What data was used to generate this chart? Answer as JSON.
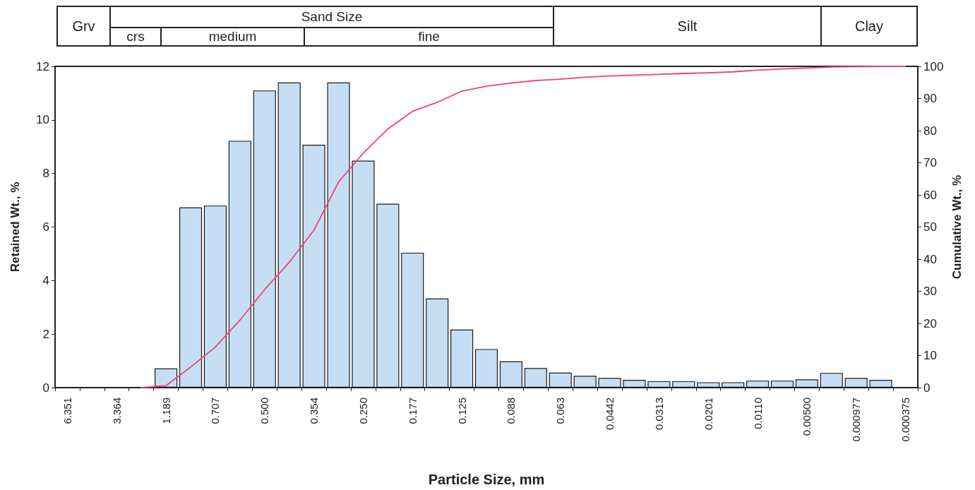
{
  "chart_data": {
    "type": "bar",
    "categories": [
      "6.351",
      null,
      "3.364",
      null,
      "1.189",
      null,
      "0.707",
      null,
      "0.500",
      null,
      "0.354",
      null,
      "0.250",
      null,
      "0.177",
      null,
      "0.125",
      null,
      "0.088",
      null,
      "0.063",
      null,
      "0.0442",
      null,
      "0.0313",
      null,
      "0.0201",
      null,
      "0.0110",
      null,
      "0.00500",
      null,
      "0.000977",
      null,
      "0.000375"
    ],
    "series": [
      {
        "color": "#c6def4",
        "values": [
          0,
          0,
          0,
          0,
          0.72,
          6.73,
          6.8,
          9.22,
          11.1,
          11.4,
          9.07,
          11.4,
          8.48,
          6.87,
          5.04,
          3.33,
          2.17,
          1.44,
          0.98,
          0.73,
          0.56,
          0.44,
          0.36,
          0.29,
          0.24,
          0.24,
          0.2,
          0.2,
          0.26,
          0.26,
          0.31,
          0.55,
          0.36,
          0.29,
          0
        ]
      },
      {
        "type": "line",
        "axis": "y2",
        "color": "#f0426c",
        "values": [
          null,
          null,
          null,
          0,
          0.6,
          6.4,
          12.6,
          21,
          30.5,
          39,
          49,
          64,
          73,
          80.5,
          86,
          88.8,
          92.3,
          93.8,
          94.8,
          95.6,
          96,
          96.6,
          97,
          97.3,
          97.5,
          97.8,
          98,
          98.3,
          98.8,
          99.2,
          99.5,
          99.8,
          99.9,
          100,
          100
        ]
      }
    ],
    "xlabel": "Particle Size, mm",
    "ylabel": "Retained Wt., %",
    "y2label": "Cumulative Wt., %",
    "ylim": [
      0,
      12
    ],
    "yticks": [
      0,
      2,
      4,
      6,
      8,
      10,
      12
    ],
    "y2lim": [
      0,
      100
    ],
    "y2ticks": [
      0,
      10,
      20,
      30,
      40,
      50,
      60,
      70,
      80,
      90,
      100
    ],
    "annotations": [
      "Grv",
      "Sand Size",
      "crs",
      "medium",
      "fine",
      "Silt",
      "Clay"
    ],
    "grid": false,
    "marker": "none",
    "line_style": "solid"
  }
}
